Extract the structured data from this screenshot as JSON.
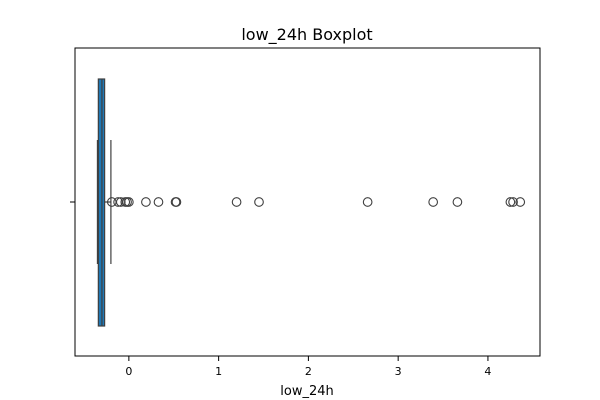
{
  "chart_data": {
    "type": "boxplot",
    "title": "low_24h Boxplot",
    "xlabel": "low_24h",
    "ylabel": "",
    "orientation": "horizontal",
    "xlim": [
      -0.6,
      4.58
    ],
    "xticks": [
      0,
      1,
      2,
      3,
      4
    ],
    "xtick_labels": [
      "0",
      "1",
      "2",
      "3",
      "4"
    ],
    "box": {
      "q1": -0.34,
      "median": -0.3,
      "q3": -0.27,
      "whisker_low": -0.35,
      "whisker_high": -0.2
    },
    "outliers": [
      -0.19,
      -0.12,
      -0.09,
      -0.04,
      -0.02,
      0.0,
      0.19,
      0.33,
      0.52,
      0.53,
      1.2,
      1.45,
      2.66,
      3.39,
      3.66,
      4.25,
      4.28,
      4.36
    ],
    "colors": {
      "box_fill": "#1f77b4",
      "box_edge": "#3f3f3f",
      "axes": "#000000",
      "background": "#ffffff"
    },
    "grid": false
  }
}
